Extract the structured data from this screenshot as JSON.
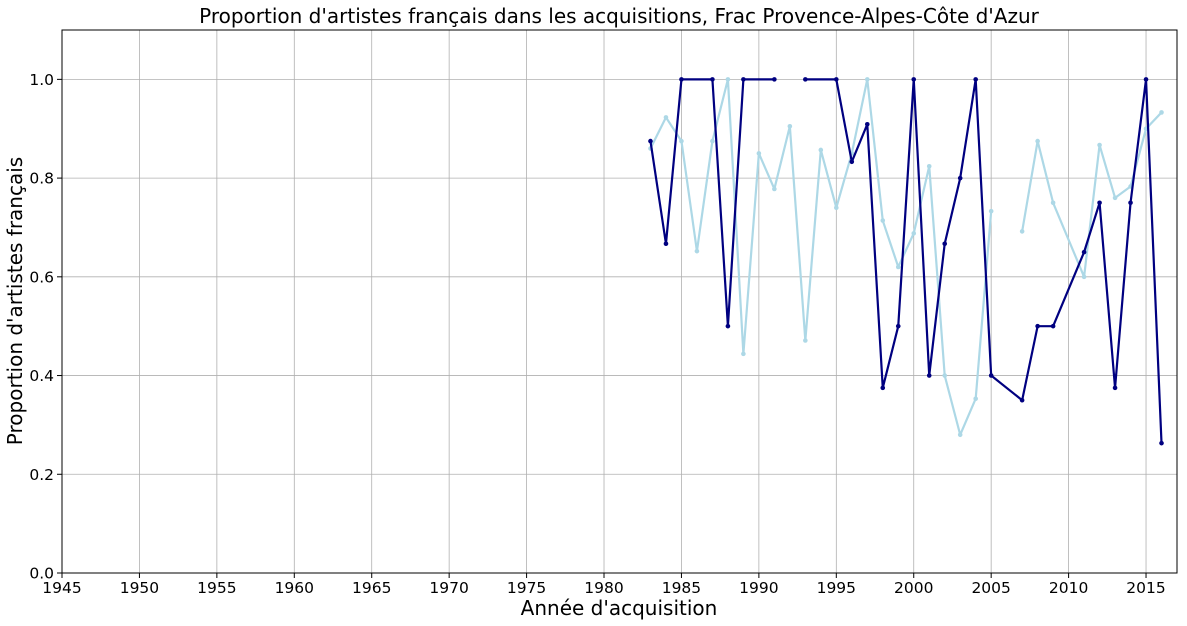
{
  "chart_data": {
    "type": "line",
    "title": "Proportion d'artistes français dans les acquisitions, Frac Provence-Alpes-Côte d'Azur",
    "xlabel": "Année d'acquisition",
    "ylabel": "Proportion d'artistes français",
    "xlim": [
      1945,
      2017
    ],
    "ylim": [
      0,
      1.1
    ],
    "xticks": [
      1945,
      1950,
      1955,
      1960,
      1965,
      1970,
      1975,
      1980,
      1985,
      1990,
      1995,
      2000,
      2005,
      2010,
      2015
    ],
    "yticks": [
      0.0,
      0.2,
      0.4,
      0.6,
      0.8,
      1.0
    ],
    "xtick_labels": [
      "1945",
      "1950",
      "1955",
      "1960",
      "1965",
      "1970",
      "1975",
      "1980",
      "1985",
      "1990",
      "1995",
      "2000",
      "2005",
      "2010",
      "2015"
    ],
    "ytick_labels": [
      "0.0",
      "0.2",
      "0.4",
      "0.6",
      "0.8",
      "1.0"
    ],
    "grid": true,
    "legend": "none",
    "series": [
      {
        "color": "#add8e6",
        "points": [
          [
            1983,
            0.86
          ],
          [
            1984,
            0.923
          ],
          [
            1985,
            0.875
          ],
          [
            1986,
            0.652
          ],
          [
            1987,
            0.875
          ],
          [
            1988,
            1.0
          ],
          [
            1989,
            0.444
          ],
          [
            1990,
            0.85
          ],
          [
            1991,
            0.778
          ],
          [
            1992,
            0.905
          ],
          [
            1993,
            0.471
          ],
          [
            1994,
            0.857
          ],
          [
            1995,
            0.74
          ],
          [
            1996,
            0.85
          ],
          [
            1997,
            1.0
          ],
          [
            1998,
            0.714
          ],
          [
            1999,
            0.62
          ],
          [
            2000,
            0.688
          ],
          [
            2001,
            0.824
          ],
          [
            2002,
            0.4
          ],
          [
            2003,
            0.28
          ],
          [
            2004,
            0.353
          ],
          [
            2005,
            0.733
          ],
          [
            2007,
            0.692
          ],
          [
            2008,
            0.875
          ],
          [
            2009,
            0.75
          ],
          [
            2011,
            0.6
          ],
          [
            2012,
            0.867
          ],
          [
            2013,
            0.76
          ],
          [
            2014,
            0.783
          ],
          [
            2015,
            0.9
          ],
          [
            2016,
            0.933
          ]
        ],
        "segments_break_after": [
          2005
        ]
      },
      {
        "color": "#000080",
        "points": [
          [
            1983,
            0.875
          ],
          [
            1984,
            0.667
          ],
          [
            1985,
            1.0
          ],
          [
            1987,
            1.0
          ],
          [
            1988,
            0.5
          ],
          [
            1989,
            1.0
          ],
          [
            1991,
            1.0
          ],
          [
            1993,
            1.0
          ],
          [
            1995,
            1.0
          ],
          [
            1996,
            0.833
          ],
          [
            1997,
            0.909
          ],
          [
            1998,
            0.375
          ],
          [
            1999,
            0.5
          ],
          [
            2000,
            1.0
          ],
          [
            2001,
            0.4
          ],
          [
            2002,
            0.667
          ],
          [
            2003,
            0.8
          ],
          [
            2004,
            1.0
          ],
          [
            2005,
            0.4
          ],
          [
            2007,
            0.35
          ],
          [
            2008,
            0.5
          ],
          [
            2009,
            0.5
          ],
          [
            2011,
            0.65
          ],
          [
            2012,
            0.75
          ],
          [
            2013,
            0.375
          ],
          [
            2014,
            0.75
          ],
          [
            2015,
            1.0
          ],
          [
            2016,
            0.263
          ]
        ],
        "segments_break_after": [
          1991
        ]
      }
    ]
  }
}
